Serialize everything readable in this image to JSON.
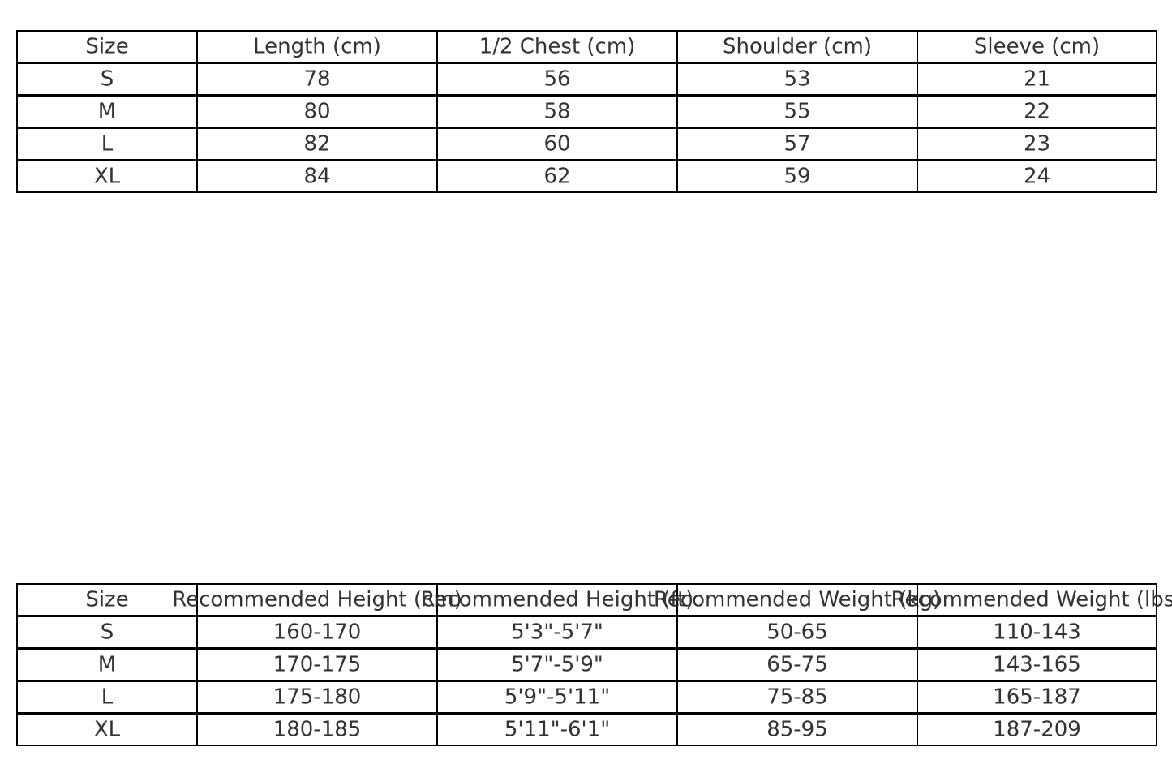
{
  "measurements_table": {
    "headers": [
      "Size",
      "Length (cm)",
      "1/2 Chest (cm)",
      "Shoulder (cm)",
      "Sleeve (cm)"
    ],
    "rows": [
      [
        "S",
        "78",
        "56",
        "53",
        "21"
      ],
      [
        "M",
        "80",
        "58",
        "55",
        "22"
      ],
      [
        "L",
        "82",
        "60",
        "57",
        "23"
      ],
      [
        "XL",
        "84",
        "62",
        "59",
        "24"
      ]
    ]
  },
  "recommendation_table": {
    "headers": [
      "Size",
      "Recommended Height (cm)",
      "Recommended Height (ft)",
      "Recommended Weight (kg)",
      "Recommended Weight (lbs)"
    ],
    "rows": [
      [
        "S",
        "160-170",
        "5'3\"-5'7\"",
        "50-65",
        "110-143"
      ],
      [
        "M",
        "170-175",
        "5'7\"-5'9\"",
        "65-75",
        "143-165"
      ],
      [
        "L",
        "175-180",
        "5'9\"-5'11\"",
        "75-85",
        "165-187"
      ],
      [
        "XL",
        "180-185",
        "5'11\"-6'1\"",
        "85-95",
        "187-209"
      ]
    ]
  }
}
